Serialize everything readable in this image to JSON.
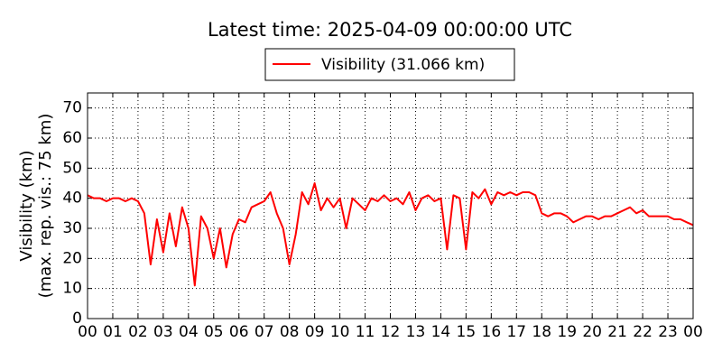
{
  "chart_data": {
    "type": "line",
    "title": "Latest time: 2025-04-09 00:00:00 UTC",
    "y_label": [
      "Visibility (km)",
      "(max. rep. vis.: 75 km)"
    ],
    "x": [
      0,
      0.25,
      0.5,
      0.75,
      1,
      1.25,
      1.5,
      1.75,
      2,
      2.25,
      2.5,
      2.75,
      3,
      3.25,
      3.5,
      3.75,
      4,
      4.25,
      4.5,
      4.75,
      5,
      5.25,
      5.5,
      5.75,
      6,
      6.25,
      6.5,
      6.75,
      7,
      7.25,
      7.5,
      7.75,
      8,
      8.25,
      8.5,
      8.75,
      9,
      9.25,
      9.5,
      9.75,
      10,
      10.25,
      10.5,
      10.75,
      11,
      11.25,
      11.5,
      11.75,
      12,
      12.25,
      12.5,
      12.75,
      13,
      13.25,
      13.5,
      13.75,
      14,
      14.25,
      14.5,
      14.75,
      15,
      15.25,
      15.5,
      15.75,
      16,
      16.25,
      16.5,
      16.75,
      17,
      17.25,
      17.5,
      17.75,
      18,
      18.25,
      18.5,
      18.75,
      19,
      19.25,
      19.5,
      19.75,
      20,
      20.25,
      20.5,
      20.75,
      21,
      21.25,
      21.5,
      21.75,
      22,
      22.25,
      22.5,
      22.75,
      23,
      23.25,
      23.5,
      23.75,
      24
    ],
    "series": [
      {
        "name": "Visibility (31.066 km)",
        "color": "#ff0000",
        "values": [
          41,
          40,
          40,
          39,
          40,
          40,
          39,
          40,
          39,
          35,
          18,
          33,
          22,
          35,
          24,
          37,
          30,
          11,
          34,
          30,
          20,
          30,
          17,
          28,
          33,
          32,
          37,
          38,
          39,
          42,
          35,
          30,
          18,
          28,
          42,
          38,
          45,
          36,
          40,
          37,
          40,
          30,
          40,
          38,
          36,
          40,
          39,
          41,
          39,
          40,
          38,
          42,
          36,
          40,
          41,
          39,
          40,
          23,
          41,
          40,
          23,
          42,
          40,
          43,
          38,
          42,
          41,
          42,
          41,
          42,
          42,
          41,
          35,
          34,
          35,
          35,
          34,
          32,
          33,
          34,
          34,
          33,
          34,
          34,
          35,
          36,
          37,
          35,
          36,
          34,
          34,
          34,
          34,
          33,
          33,
          32,
          31.066
        ]
      }
    ],
    "xlim": [
      0,
      24
    ],
    "xticks": [
      {
        "value": 0,
        "label": "00"
      },
      {
        "value": 1,
        "label": "01"
      },
      {
        "value": 2,
        "label": "02"
      },
      {
        "value": 3,
        "label": "03"
      },
      {
        "value": 4,
        "label": "04"
      },
      {
        "value": 5,
        "label": "05"
      },
      {
        "value": 6,
        "label": "06"
      },
      {
        "value": 7,
        "label": "07"
      },
      {
        "value": 8,
        "label": "08"
      },
      {
        "value": 9,
        "label": "09"
      },
      {
        "value": 10,
        "label": "10"
      },
      {
        "value": 11,
        "label": "11"
      },
      {
        "value": 12,
        "label": "12"
      },
      {
        "value": 13,
        "label": "13"
      },
      {
        "value": 14,
        "label": "14"
      },
      {
        "value": 15,
        "label": "15"
      },
      {
        "value": 16,
        "label": "16"
      },
      {
        "value": 17,
        "label": "17"
      },
      {
        "value": 18,
        "label": "18"
      },
      {
        "value": 19,
        "label": "19"
      },
      {
        "value": 20,
        "label": "20"
      },
      {
        "value": 21,
        "label": "21"
      },
      {
        "value": 22,
        "label": "22"
      },
      {
        "value": 23,
        "label": "23"
      },
      {
        "value": 24,
        "label": "00"
      }
    ],
    "ylim": [
      0,
      75
    ],
    "yticks": [
      0,
      10,
      20,
      30,
      40,
      50,
      60,
      70
    ],
    "grid": true
  }
}
